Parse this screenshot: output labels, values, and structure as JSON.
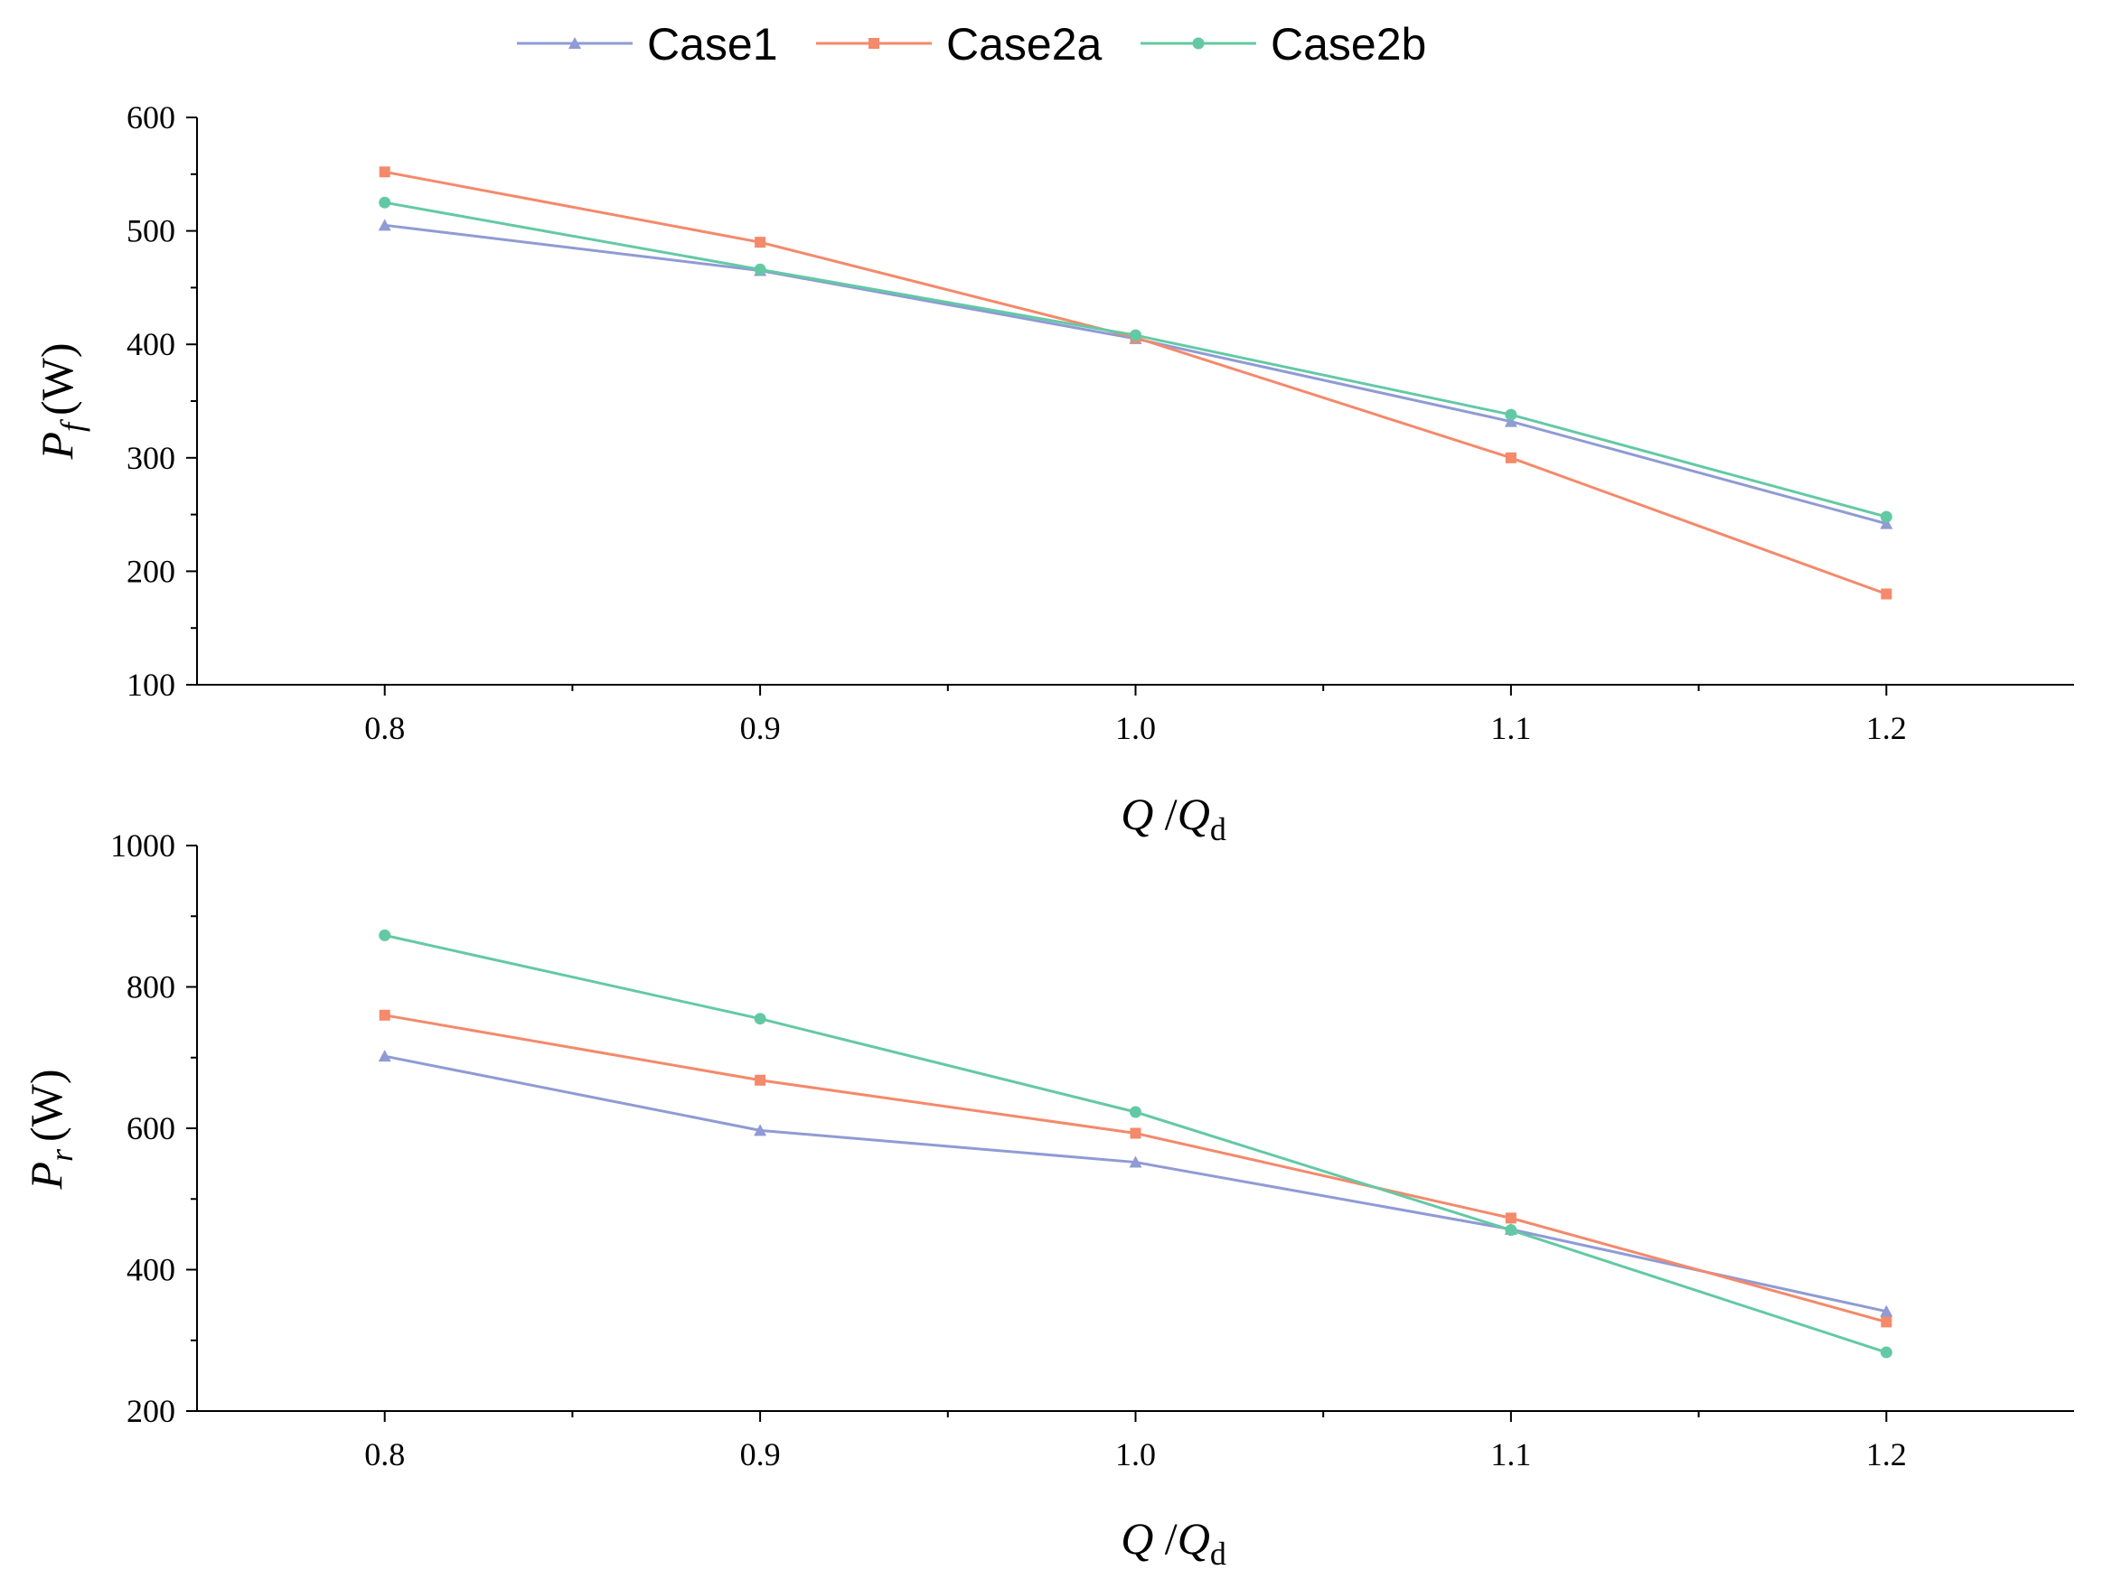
{
  "legend": {
    "items": [
      {
        "name": "Case1",
        "color": "#8f9bd4",
        "marker": "triangle"
      },
      {
        "name": "Case2a",
        "color": "#f4896b",
        "marker": "square"
      },
      {
        "name": "Case2b",
        "color": "#63c9a4",
        "marker": "circle"
      }
    ]
  },
  "chart_data": [
    {
      "type": "line",
      "title": "",
      "xlabel": {
        "main": "Q",
        "sep": " /",
        "var": "Q",
        "sub": "d"
      },
      "ylabel": {
        "var": "P",
        "sub": "f",
        "unit": "(W)"
      },
      "x": [
        0.8,
        0.9,
        1.0,
        1.1,
        1.2
      ],
      "x_tick_labels": [
        "0.8",
        "0.9",
        "1.0",
        "1.1",
        "1.2"
      ],
      "xlim": [
        0.75,
        1.25
      ],
      "ylim": [
        100,
        600
      ],
      "y_ticks": [
        100,
        200,
        300,
        400,
        500,
        600
      ],
      "y_tick_labels": [
        "100",
        "200",
        "300",
        "400",
        "500",
        "600"
      ],
      "series": [
        {
          "name": "Case1",
          "values": [
            505,
            465,
            405,
            332,
            242
          ]
        },
        {
          "name": "Case2a",
          "values": [
            552,
            490,
            406,
            300,
            180
          ]
        },
        {
          "name": "Case2b",
          "values": [
            525,
            466,
            408,
            338,
            248
          ]
        }
      ]
    },
    {
      "type": "line",
      "title": "",
      "xlabel": {
        "main": "Q",
        "sep": " /",
        "var": "Q",
        "sub": "d"
      },
      "ylabel": {
        "var": "P",
        "sub": "r",
        "unit": "(W)"
      },
      "x": [
        0.8,
        0.9,
        1.0,
        1.1,
        1.2
      ],
      "x_tick_labels": [
        "0.8",
        "0.9",
        "1.0",
        "1.1",
        "1.2"
      ],
      "xlim": [
        0.75,
        1.25
      ],
      "ylim": [
        200,
        1000
      ],
      "y_ticks": [
        200,
        400,
        600,
        800,
        1000
      ],
      "y_tick_labels": [
        "200",
        "400",
        "600",
        "800",
        "1000"
      ],
      "series": [
        {
          "name": "Case1",
          "values": [
            702,
            597,
            552,
            457,
            341
          ]
        },
        {
          "name": "Case2a",
          "values": [
            760,
            668,
            593,
            473,
            326
          ]
        },
        {
          "name": "Case2b",
          "values": [
            873,
            755,
            623,
            456,
            283
          ]
        }
      ]
    }
  ]
}
